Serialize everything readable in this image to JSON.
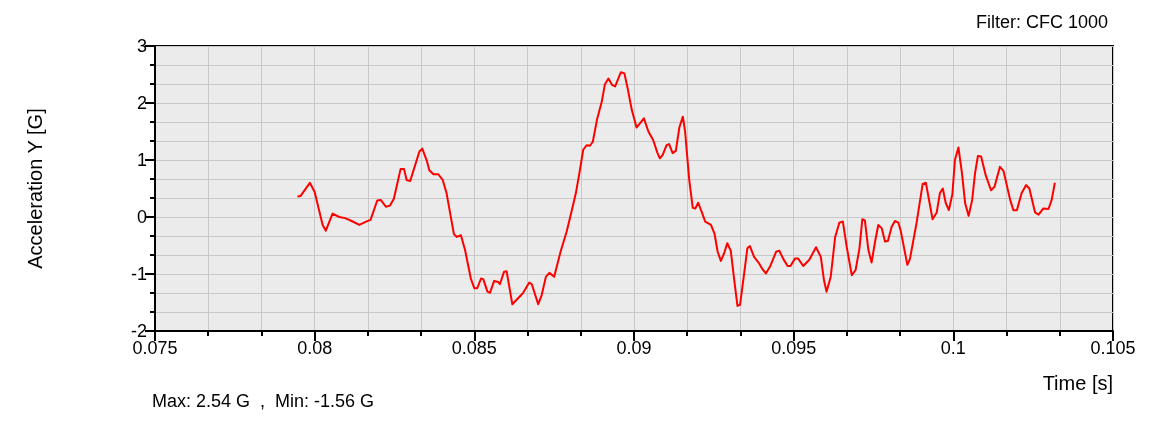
{
  "chart_data": {
    "type": "line",
    "title": "Filter: CFC 1000",
    "xlabel": "Time [s]",
    "ylabel": "Acceleration Y [G]",
    "annotations": [
      "Max: 2.54 G  ,  Min: -1.56 G"
    ],
    "xlim": [
      0.075,
      0.105
    ],
    "xticks": [
      0.075,
      0.08,
      0.085,
      0.09,
      0.095,
      0.1,
      0.105
    ],
    "ylim": [
      -2,
      3
    ],
    "yticks": [
      -2,
      -1,
      0,
      1,
      2,
      3
    ],
    "grid": true,
    "marker": "none",
    "line_style": "solid",
    "series": [
      {
        "color": "#ff0000",
        "x": [
          0.07946,
          0.07956,
          0.07985,
          0.08,
          0.08025,
          0.08035,
          0.08056,
          0.08077,
          0.08095,
          0.08116,
          0.0814,
          0.08161,
          0.08175,
          0.08196,
          0.08207,
          0.08223,
          0.08236,
          0.08248,
          0.08269,
          0.0828,
          0.08288,
          0.08299,
          0.08328,
          0.08337,
          0.08351,
          0.08359,
          0.08372,
          0.08387,
          0.08401,
          0.08413,
          0.08436,
          0.08445,
          0.08458,
          0.08471,
          0.08489,
          0.085,
          0.08509,
          0.08521,
          0.08528,
          0.08541,
          0.08549,
          0.08562,
          0.08575,
          0.0858,
          0.08593,
          0.08601,
          0.08619,
          0.08643,
          0.08653,
          0.08672,
          0.0868,
          0.087,
          0.08711,
          0.08724,
          0.08735,
          0.0875,
          0.0877,
          0.08789,
          0.08802,
          0.08818,
          0.08829,
          0.08841,
          0.08852,
          0.08862,
          0.08871,
          0.08885,
          0.08899,
          0.08909,
          0.0892,
          0.08931,
          0.08941,
          0.08959,
          0.0897,
          0.0898,
          0.08993,
          0.09008,
          0.09031,
          0.09045,
          0.0906,
          0.09073,
          0.09081,
          0.0909,
          0.09102,
          0.0911,
          0.09121,
          0.09131,
          0.09142,
          0.09153,
          0.0916,
          0.09173,
          0.09184,
          0.09192,
          0.09201,
          0.09212,
          0.09223,
          0.09241,
          0.09252,
          0.09262,
          0.09272,
          0.09282,
          0.09292,
          0.09303,
          0.09314,
          0.09324,
          0.09332,
          0.09345,
          0.09355,
          0.09363,
          0.09376,
          0.0939,
          0.09403,
          0.09413,
          0.09426,
          0.09445,
          0.09455,
          0.09467,
          0.09481,
          0.0949,
          0.09504,
          0.09514,
          0.0953,
          0.09549,
          0.0957,
          0.09585,
          0.09595,
          0.09603,
          0.09616,
          0.0963,
          0.09643,
          0.09654,
          0.09666,
          0.09682,
          0.09694,
          0.09706,
          0.09715,
          0.09723,
          0.09734,
          0.09744,
          0.09755,
          0.09765,
          0.09776,
          0.09786,
          0.09795,
          0.09807,
          0.09817,
          0.09828,
          0.09836,
          0.09856,
          0.09864,
          0.09885,
          0.09904,
          0.09914,
          0.09935,
          0.09948,
          0.09958,
          0.09967,
          0.09976,
          0.09986,
          0.09997,
          0.10005,
          0.10016,
          0.10027,
          0.10037,
          0.10048,
          0.10059,
          0.10068,
          0.10077,
          0.10087,
          0.10101,
          0.10118,
          0.10129,
          0.10146,
          0.10157,
          0.10178,
          0.10188,
          0.10199,
          0.10214,
          0.10228,
          0.10238,
          0.10256,
          0.10267,
          0.10282,
          0.10298,
          0.10308,
          0.10318
        ],
        "values": [
          0.36,
          0.37,
          0.6,
          0.44,
          -0.14,
          -0.24,
          0.06,
          0.0,
          -0.02,
          -0.07,
          -0.14,
          -0.08,
          -0.05,
          0.29,
          0.3,
          0.18,
          0.2,
          0.32,
          0.84,
          0.84,
          0.65,
          0.63,
          1.15,
          1.2,
          0.99,
          0.82,
          0.75,
          0.75,
          0.65,
          0.42,
          -0.3,
          -0.35,
          -0.32,
          -0.58,
          -1.08,
          -1.25,
          -1.25,
          -1.08,
          -1.09,
          -1.31,
          -1.33,
          -1.12,
          -1.14,
          -1.18,
          -0.96,
          -0.95,
          -1.53,
          -1.39,
          -1.33,
          -1.15,
          -1.18,
          -1.53,
          -1.37,
          -1.05,
          -0.98,
          -1.05,
          -0.61,
          -0.26,
          0.04,
          0.42,
          0.77,
          1.18,
          1.26,
          1.25,
          1.32,
          1.73,
          2.02,
          2.33,
          2.43,
          2.32,
          2.29,
          2.54,
          2.52,
          2.26,
          1.88,
          1.57,
          1.73,
          1.5,
          1.35,
          1.13,
          1.03,
          1.09,
          1.26,
          1.28,
          1.12,
          1.16,
          1.57,
          1.76,
          1.5,
          0.65,
          0.16,
          0.15,
          0.25,
          0.09,
          -0.08,
          -0.14,
          -0.29,
          -0.61,
          -0.77,
          -0.64,
          -0.46,
          -0.59,
          -1.11,
          -1.56,
          -1.54,
          -0.99,
          -0.55,
          -0.51,
          -0.7,
          -0.8,
          -0.92,
          -0.99,
          -0.87,
          -0.61,
          -0.59,
          -0.73,
          -0.86,
          -0.86,
          -0.73,
          -0.73,
          -0.86,
          -0.75,
          -0.53,
          -0.7,
          -1.11,
          -1.31,
          -1.05,
          -0.35,
          -0.1,
          -0.08,
          -0.52,
          -1.02,
          -0.93,
          -0.55,
          -0.04,
          -0.06,
          -0.58,
          -0.8,
          -0.43,
          -0.14,
          -0.2,
          -0.43,
          -0.42,
          -0.17,
          -0.07,
          -0.1,
          -0.26,
          -0.84,
          -0.74,
          -0.1,
          0.58,
          0.6,
          -0.04,
          0.08,
          0.42,
          0.5,
          0.25,
          0.12,
          0.4,
          1.0,
          1.22,
          0.77,
          0.24,
          0.02,
          0.3,
          0.77,
          1.07,
          1.06,
          0.74,
          0.47,
          0.53,
          0.88,
          0.81,
          0.3,
          0.12,
          0.12,
          0.42,
          0.56,
          0.5,
          0.08,
          0.04,
          0.15,
          0.14,
          0.3,
          0.6
        ]
      }
    ]
  }
}
